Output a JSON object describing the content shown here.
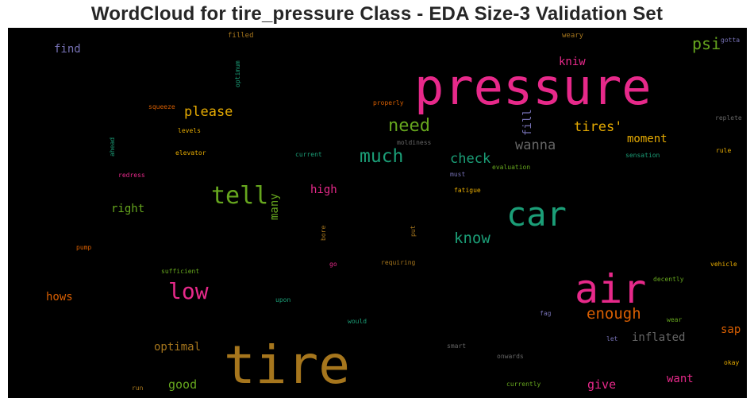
{
  "figure": {
    "title": "WordCloud for tire_pressure Class - EDA Size-3 Validation Set"
  },
  "palette": {
    "background": "#000000",
    "pink": "#e7298a",
    "green": "#1b9e77",
    "gold": "#a6761d",
    "lime": "#66a61e",
    "orange": "#d95f02",
    "purple": "#7570b3",
    "amber": "#e6ab02",
    "gray": "#666666"
  },
  "words": [
    {
      "text": "pressure"
    },
    {
      "text": "tire"
    },
    {
      "text": "air"
    },
    {
      "text": "car"
    },
    {
      "text": "tell"
    },
    {
      "text": "low"
    },
    {
      "text": "much"
    },
    {
      "text": "need"
    },
    {
      "text": "psi"
    },
    {
      "text": "please"
    },
    {
      "text": "check"
    },
    {
      "text": "wanna"
    },
    {
      "text": "tires'"
    },
    {
      "text": "know"
    },
    {
      "text": "enough"
    },
    {
      "text": "moment"
    },
    {
      "text": "find"
    },
    {
      "text": "kniw"
    },
    {
      "text": "fill"
    },
    {
      "text": "high"
    },
    {
      "text": "right"
    },
    {
      "text": "many"
    },
    {
      "text": "hows"
    },
    {
      "text": "optimal"
    },
    {
      "text": "good"
    },
    {
      "text": "give"
    },
    {
      "text": "want"
    },
    {
      "text": "inflated"
    },
    {
      "text": "sap"
    },
    {
      "text": "filled"
    },
    {
      "text": "weary"
    },
    {
      "text": "optimum"
    },
    {
      "text": "gotta"
    },
    {
      "text": "squeeze"
    },
    {
      "text": "properly"
    },
    {
      "text": "replete"
    },
    {
      "text": "levels"
    },
    {
      "text": "moldiness"
    },
    {
      "text": "ahead"
    },
    {
      "text": "elevator"
    },
    {
      "text": "current"
    },
    {
      "text": "evaluation"
    },
    {
      "text": "sensation"
    },
    {
      "text": "rule"
    },
    {
      "text": "redress"
    },
    {
      "text": "must"
    },
    {
      "text": "fatigue"
    },
    {
      "text": "bore"
    },
    {
      "text": "put"
    },
    {
      "text": "pump"
    },
    {
      "text": "sufficient"
    },
    {
      "text": "go"
    },
    {
      "text": "requiring"
    },
    {
      "text": "vehicle"
    },
    {
      "text": "decently"
    },
    {
      "text": "upon"
    },
    {
      "text": "fag"
    },
    {
      "text": "would"
    },
    {
      "text": "wear"
    },
    {
      "text": "let"
    },
    {
      "text": "smart"
    },
    {
      "text": "onwards"
    },
    {
      "text": "okay"
    },
    {
      "text": "run"
    },
    {
      "text": "currently"
    }
  ]
}
